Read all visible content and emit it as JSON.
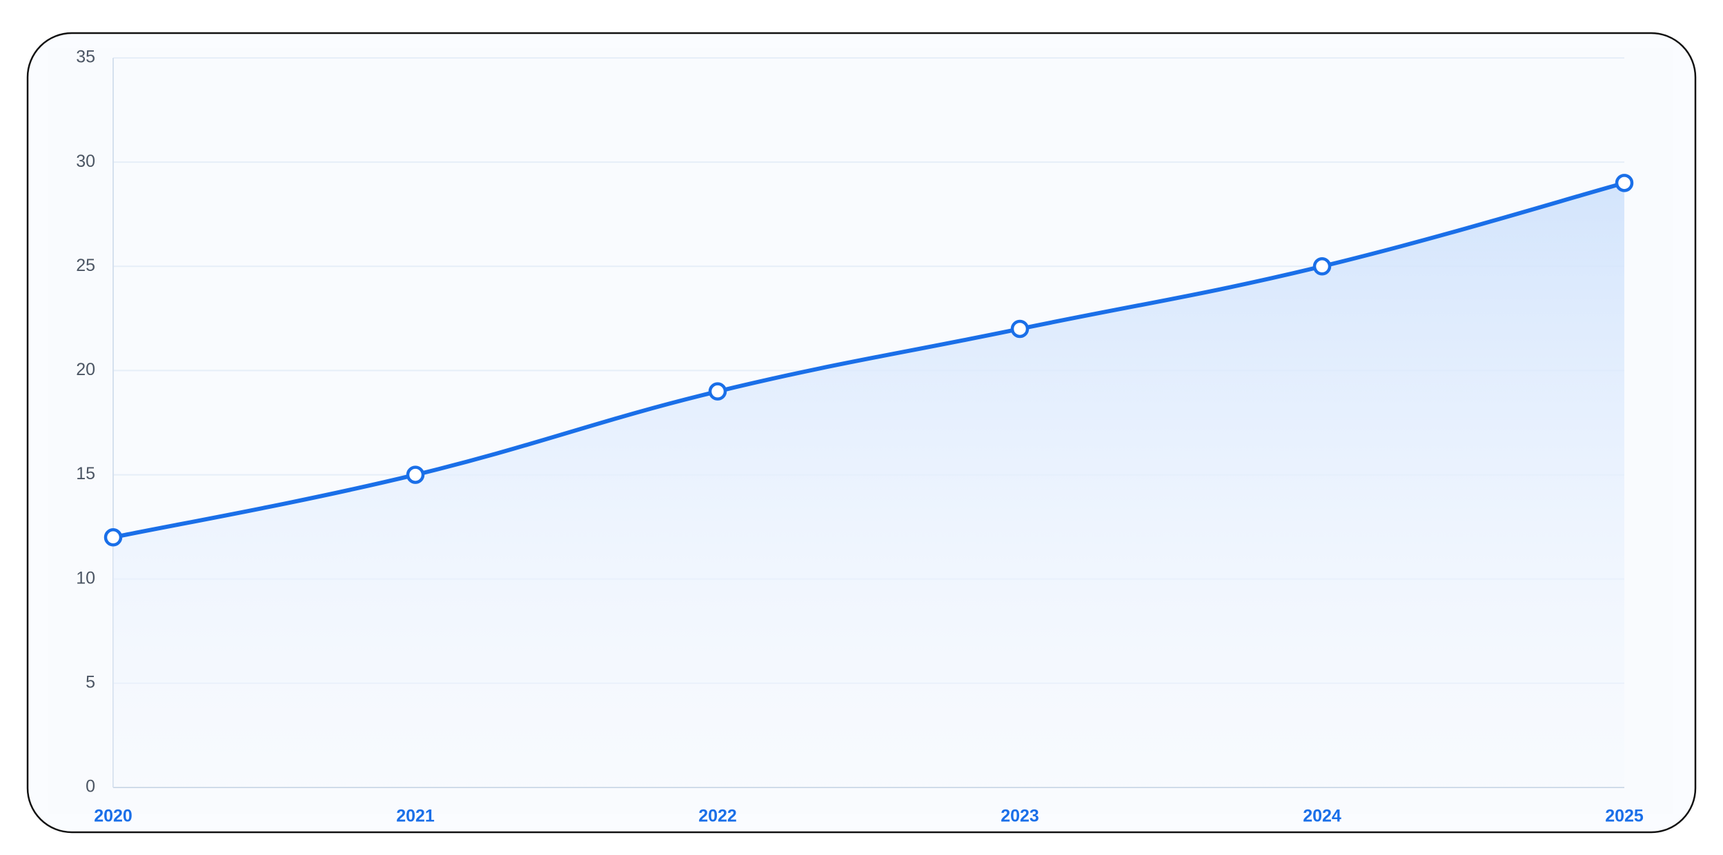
{
  "chart_data": {
    "type": "line",
    "categories": [
      "2020",
      "2021",
      "2022",
      "2023",
      "2024",
      "2025"
    ],
    "values": [
      12,
      15,
      19,
      22,
      25,
      29
    ],
    "color": "#1a6fe8",
    "ylim": [
      0,
      35
    ],
    "yticks": [
      0,
      5,
      10,
      15,
      20,
      25,
      30,
      35
    ],
    "grid": true
  }
}
